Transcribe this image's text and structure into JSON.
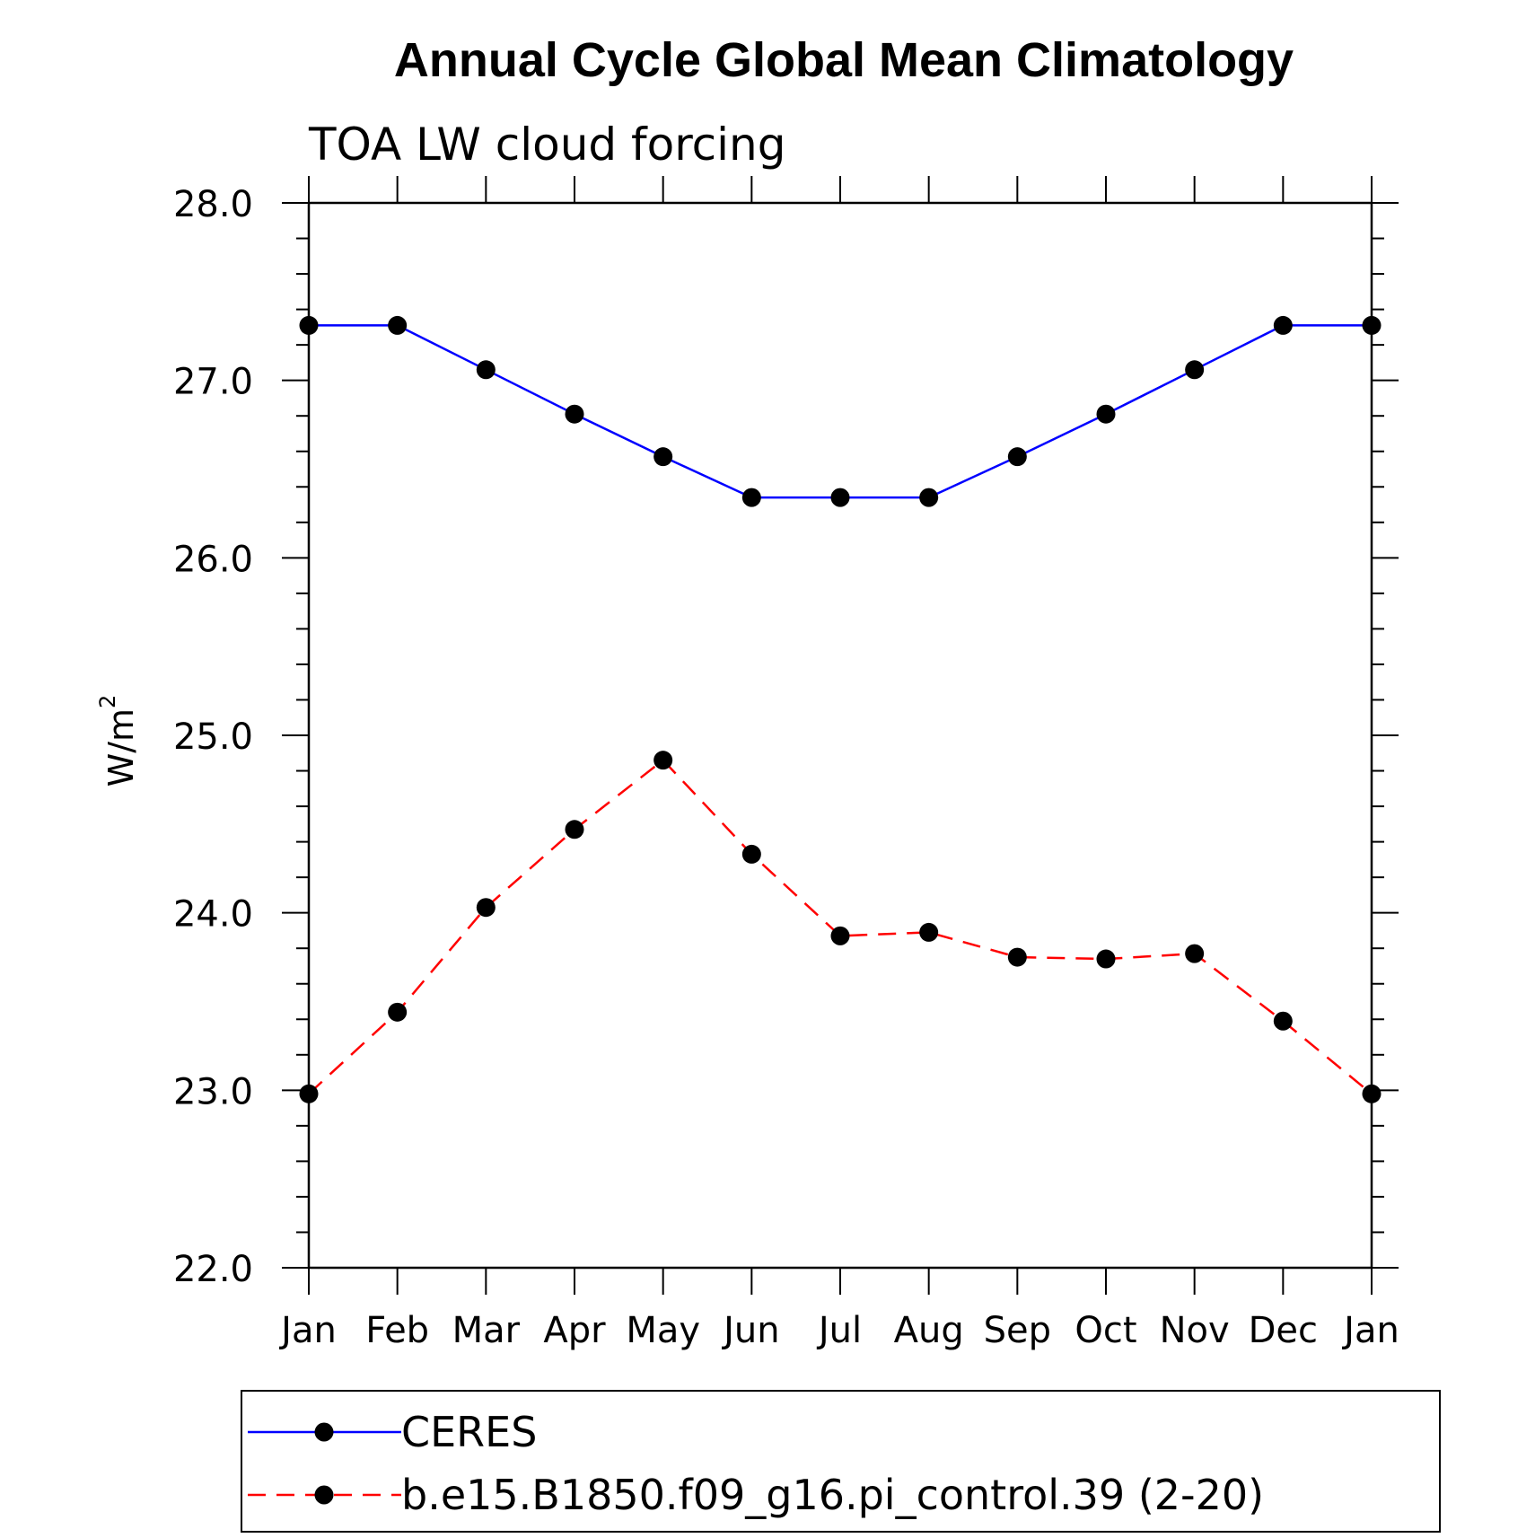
{
  "chart_data": {
    "type": "line",
    "title": "Annual Cycle Global Mean Climatology",
    "subtitle": "TOA LW cloud forcing",
    "ylabel": "W/m",
    "ylabel_superscript": "2",
    "xlabel": "",
    "categories": [
      "Jan",
      "Feb",
      "Mar",
      "Apr",
      "May",
      "Jun",
      "Jul",
      "Aug",
      "Sep",
      "Oct",
      "Nov",
      "Dec",
      "Jan"
    ],
    "ylim": [
      22.0,
      28.0
    ],
    "yticks": [
      "22.0",
      "23.0",
      "24.0",
      "25.0",
      "26.0",
      "27.0",
      "28.0"
    ],
    "grid": false,
    "legend_position": "bottom",
    "series": [
      {
        "name": "CERES",
        "color": "#0000ff",
        "line_style": "solid",
        "marker": "filled-circle",
        "values": [
          27.31,
          27.31,
          27.06,
          26.81,
          26.57,
          26.34,
          26.34,
          26.34,
          26.57,
          26.81,
          27.06,
          27.31,
          27.31
        ]
      },
      {
        "name": "b.e15.B1850.f09_g16.pi_control.39 (2-20)",
        "color": "#ff0000",
        "line_style": "dashed",
        "marker": "filled-circle",
        "values": [
          22.98,
          23.44,
          24.03,
          24.47,
          24.86,
          24.33,
          23.87,
          23.89,
          23.75,
          23.74,
          23.77,
          23.39,
          22.98
        ]
      }
    ]
  }
}
